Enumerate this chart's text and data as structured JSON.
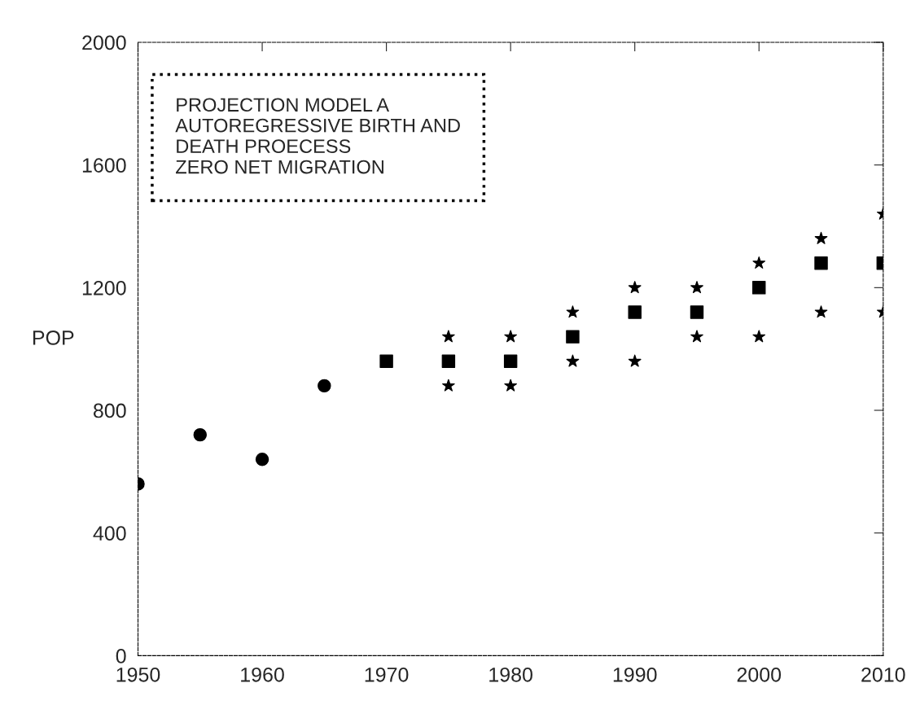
{
  "chart_data": {
    "type": "scatter",
    "ylabel": "POP",
    "annotations": [
      "PROJECTION MODEL A\nAUTOREGRESSIVE BIRTH AND\nDEATH PROECESS\nZERO NET MIGRATION"
    ],
    "series": [
      {
        "color": "#000000",
        "marker": "circle",
        "x": [
          1950,
          1955,
          1960,
          1965
        ],
        "values": [
          560,
          720,
          640,
          880
        ]
      },
      {
        "color": "#000000",
        "marker": "square",
        "x": [
          1970,
          1975,
          1980,
          1985,
          1990,
          1995,
          2000,
          2005,
          2010
        ],
        "values": [
          960,
          960,
          960,
          1040,
          1120,
          1120,
          1200,
          1280,
          1280
        ]
      },
      {
        "color": "#000000",
        "marker": "star",
        "x": [
          1975,
          1980,
          1985,
          1990,
          1995,
          2000,
          2005,
          2010
        ],
        "values": [
          1040,
          1040,
          1120,
          1200,
          1200,
          1280,
          1360,
          1440
        ]
      },
      {
        "color": "#000000",
        "marker": "star",
        "x": [
          1975,
          1980,
          1985,
          1990,
          1995,
          2000,
          2005,
          2010
        ],
        "values": [
          880,
          880,
          960,
          960,
          1040,
          1040,
          1120,
          1120
        ]
      }
    ],
    "xlim": [
      1950,
      2010
    ],
    "xticks": [
      1950,
      1960,
      1970,
      1980,
      1990,
      2000,
      2010
    ],
    "ylim": [
      0,
      2000
    ],
    "yticks": [
      0,
      400,
      800,
      1200,
      1600,
      2000
    ],
    "grid": false
  }
}
